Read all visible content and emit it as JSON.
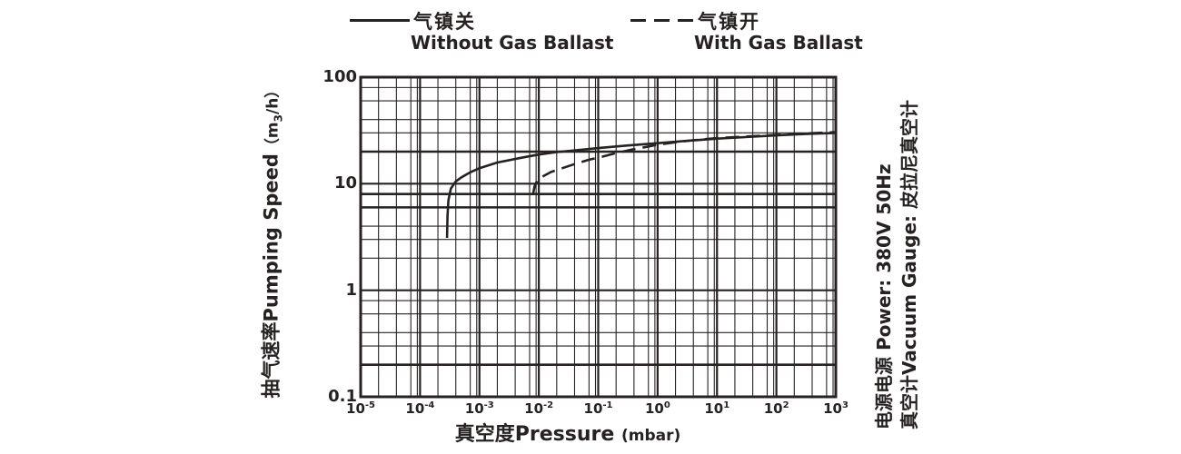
{
  "colors": {
    "ink": "#262222",
    "background": "#ffffff"
  },
  "legend": {
    "items": [
      {
        "line_style": "solid",
        "zh": "气镇关",
        "en": "Without Gas Ballast"
      },
      {
        "line_style": "dashed",
        "zh": "气镇开",
        "en": "With Gas Ballast"
      }
    ]
  },
  "y_axis": {
    "title_zh": "抽气速率",
    "title_en": "Pumping Speed",
    "unit_pre": "（m",
    "unit_sub": "3",
    "unit_post": "/h）",
    "ticks": [
      "100",
      "10",
      "1",
      "0.1"
    ]
  },
  "x_axis": {
    "title_zh": "真空度",
    "title_en": "Pressure",
    "unit": "(mbar)",
    "tick_base": "10",
    "tick_exponents": [
      "-5",
      "-4",
      "-3",
      "-2",
      "-1",
      "0",
      "1",
      "2",
      "3"
    ]
  },
  "side_notes": {
    "line1": "电源电源 Power: 380V 50Hz",
    "line2": "真空计Vacuum Gauge: 皮拉尼真空计"
  },
  "chart_data": {
    "type": "line",
    "x_scale": "log",
    "y_scale": "log",
    "xlabel": "真空度Pressure (mbar)",
    "ylabel": "抽气速率Pumping Speed (m3/h)",
    "xlim": [
      1e-05,
      1000
    ],
    "ylim": [
      0.1,
      100
    ],
    "grid": {
      "x_minor_mantissas": [
        2,
        4,
        7,
        9
      ],
      "y_minor_mantissas": [
        2,
        3,
        4,
        6,
        8
      ],
      "y_bold_minors": [
        20,
        8,
        6,
        0.2
      ]
    },
    "series": [
      {
        "name": "气镇关 Without Gas Ballast",
        "style": "solid",
        "points": [
          [
            0.000285,
            3.1
          ],
          [
            0.00029,
            5.0
          ],
          [
            0.0003,
            7.0
          ],
          [
            0.00033,
            9.0
          ],
          [
            0.0004,
            10.5
          ],
          [
            0.0005,
            11.5
          ],
          [
            0.0007,
            12.8
          ],
          [
            0.001,
            14.0
          ],
          [
            0.002,
            15.8
          ],
          [
            0.005,
            17.5
          ],
          [
            0.01,
            18.8
          ],
          [
            0.02,
            19.8
          ],
          [
            0.05,
            20.8
          ],
          [
            0.1,
            21.6
          ],
          [
            0.3,
            22.8
          ],
          [
            1,
            24.0
          ],
          [
            3,
            25.2
          ],
          [
            10,
            26.5
          ],
          [
            30,
            27.4
          ],
          [
            100,
            28.4
          ],
          [
            300,
            29.3
          ],
          [
            1000,
            30.0
          ]
        ]
      },
      {
        "name": "气镇开 With Gas Ballast",
        "style": "dashed",
        "points": [
          [
            0.008,
            8.0
          ],
          [
            0.0085,
            9.5
          ],
          [
            0.0095,
            10.8
          ],
          [
            0.012,
            11.8
          ],
          [
            0.016,
            12.9
          ],
          [
            0.025,
            14.0
          ],
          [
            0.04,
            15.3
          ],
          [
            0.07,
            16.8
          ],
          [
            0.12,
            18.0
          ],
          [
            0.2,
            19.4
          ],
          [
            0.35,
            20.8
          ],
          [
            0.6,
            22.0
          ],
          [
            1,
            23.2
          ],
          [
            2,
            24.5
          ],
          [
            4,
            25.6
          ],
          [
            10,
            26.8
          ],
          [
            30,
            27.7
          ],
          [
            100,
            28.7
          ],
          [
            300,
            29.6
          ],
          [
            1000,
            30.5
          ]
        ]
      }
    ]
  }
}
